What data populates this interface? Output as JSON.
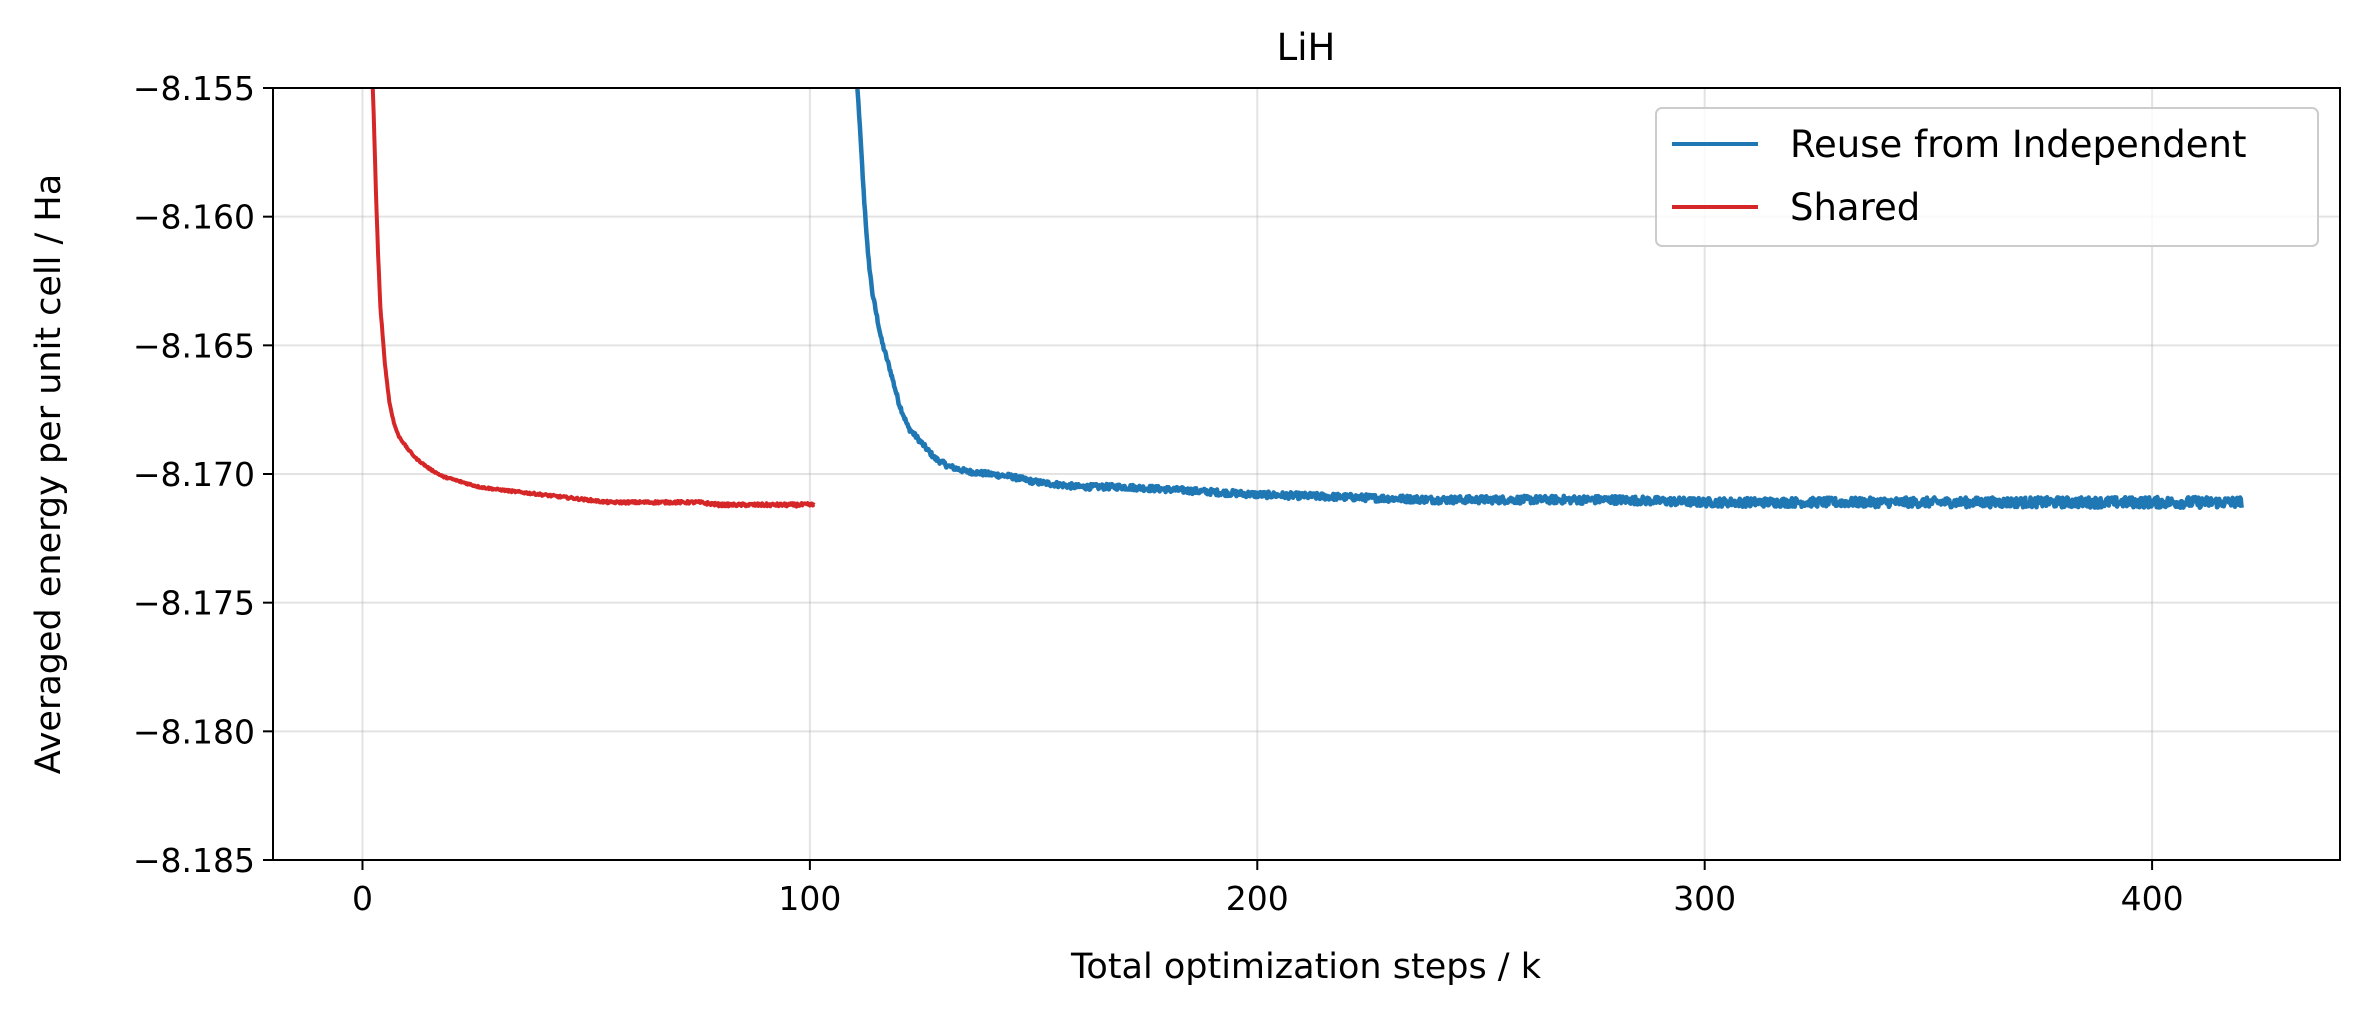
{
  "chart_data": {
    "type": "line",
    "title": "LiH",
    "xlabel": "Total optimization steps / k",
    "ylabel": "Averaged energy per unit cell / Ha",
    "xlim": [
      -20,
      442
    ],
    "ylim": [
      -8.185,
      -8.155
    ],
    "xticks": [
      0,
      100,
      200,
      300,
      400
    ],
    "xtick_labels": [
      "0",
      "100",
      "200",
      "300",
      "400"
    ],
    "yticks": [
      -8.155,
      -8.16,
      -8.165,
      -8.17,
      -8.175,
      -8.18,
      -8.185
    ],
    "ytick_labels": [
      "−8.155",
      "−8.160",
      "−8.165",
      "−8.170",
      "−8.175",
      "−8.180",
      "−8.185"
    ],
    "grid": true,
    "legend_position": "top-right",
    "series": [
      {
        "name": "Reuse from Independent",
        "color": "#1f77b4",
        "x": [
          110,
          111,
          112,
          113,
          114,
          116,
          118,
          120,
          122,
          125,
          128,
          131,
          135,
          140,
          145,
          150,
          155,
          160,
          170,
          180,
          190,
          200,
          220,
          240,
          260,
          280,
          300,
          320,
          340,
          360,
          380,
          400,
          420
        ],
        "y": [
          -8.1535,
          -8.156,
          -8.159,
          -8.1615,
          -8.163,
          -8.1648,
          -8.166,
          -8.1673,
          -8.1682,
          -8.1688,
          -8.1694,
          -8.1697,
          -8.1699,
          -8.17,
          -8.1701,
          -8.1703,
          -8.1704,
          -8.1705,
          -8.1705,
          -8.1706,
          -8.1707,
          -8.1708,
          -8.1709,
          -8.171,
          -8.171,
          -8.171,
          -8.1711,
          -8.1711,
          -8.1711,
          -8.1711,
          -8.1711,
          -8.1711,
          -8.1711
        ],
        "noise": 0.00022
      },
      {
        "name": "Shared",
        "color": "#d62728",
        "x": [
          2,
          2.5,
          3,
          3.5,
          4,
          5,
          6,
          7,
          8,
          10,
          12,
          15,
          18,
          22,
          26,
          30,
          35,
          40,
          45,
          50,
          55,
          60,
          65,
          70,
          75,
          80,
          85,
          90,
          95,
          101
        ],
        "y": [
          -8.1535,
          -8.156,
          -8.159,
          -8.1615,
          -8.1635,
          -8.1657,
          -8.1672,
          -8.168,
          -8.1685,
          -8.169,
          -8.1694,
          -8.1698,
          -8.1701,
          -8.1703,
          -8.1705,
          -8.1706,
          -8.1707,
          -8.1708,
          -8.1709,
          -8.171,
          -8.1711,
          -8.1711,
          -8.1711,
          -8.1711,
          -8.1711,
          -8.1712,
          -8.1712,
          -8.1712,
          -8.1712,
          -8.1712
        ],
        "noise": 7e-05
      }
    ]
  }
}
